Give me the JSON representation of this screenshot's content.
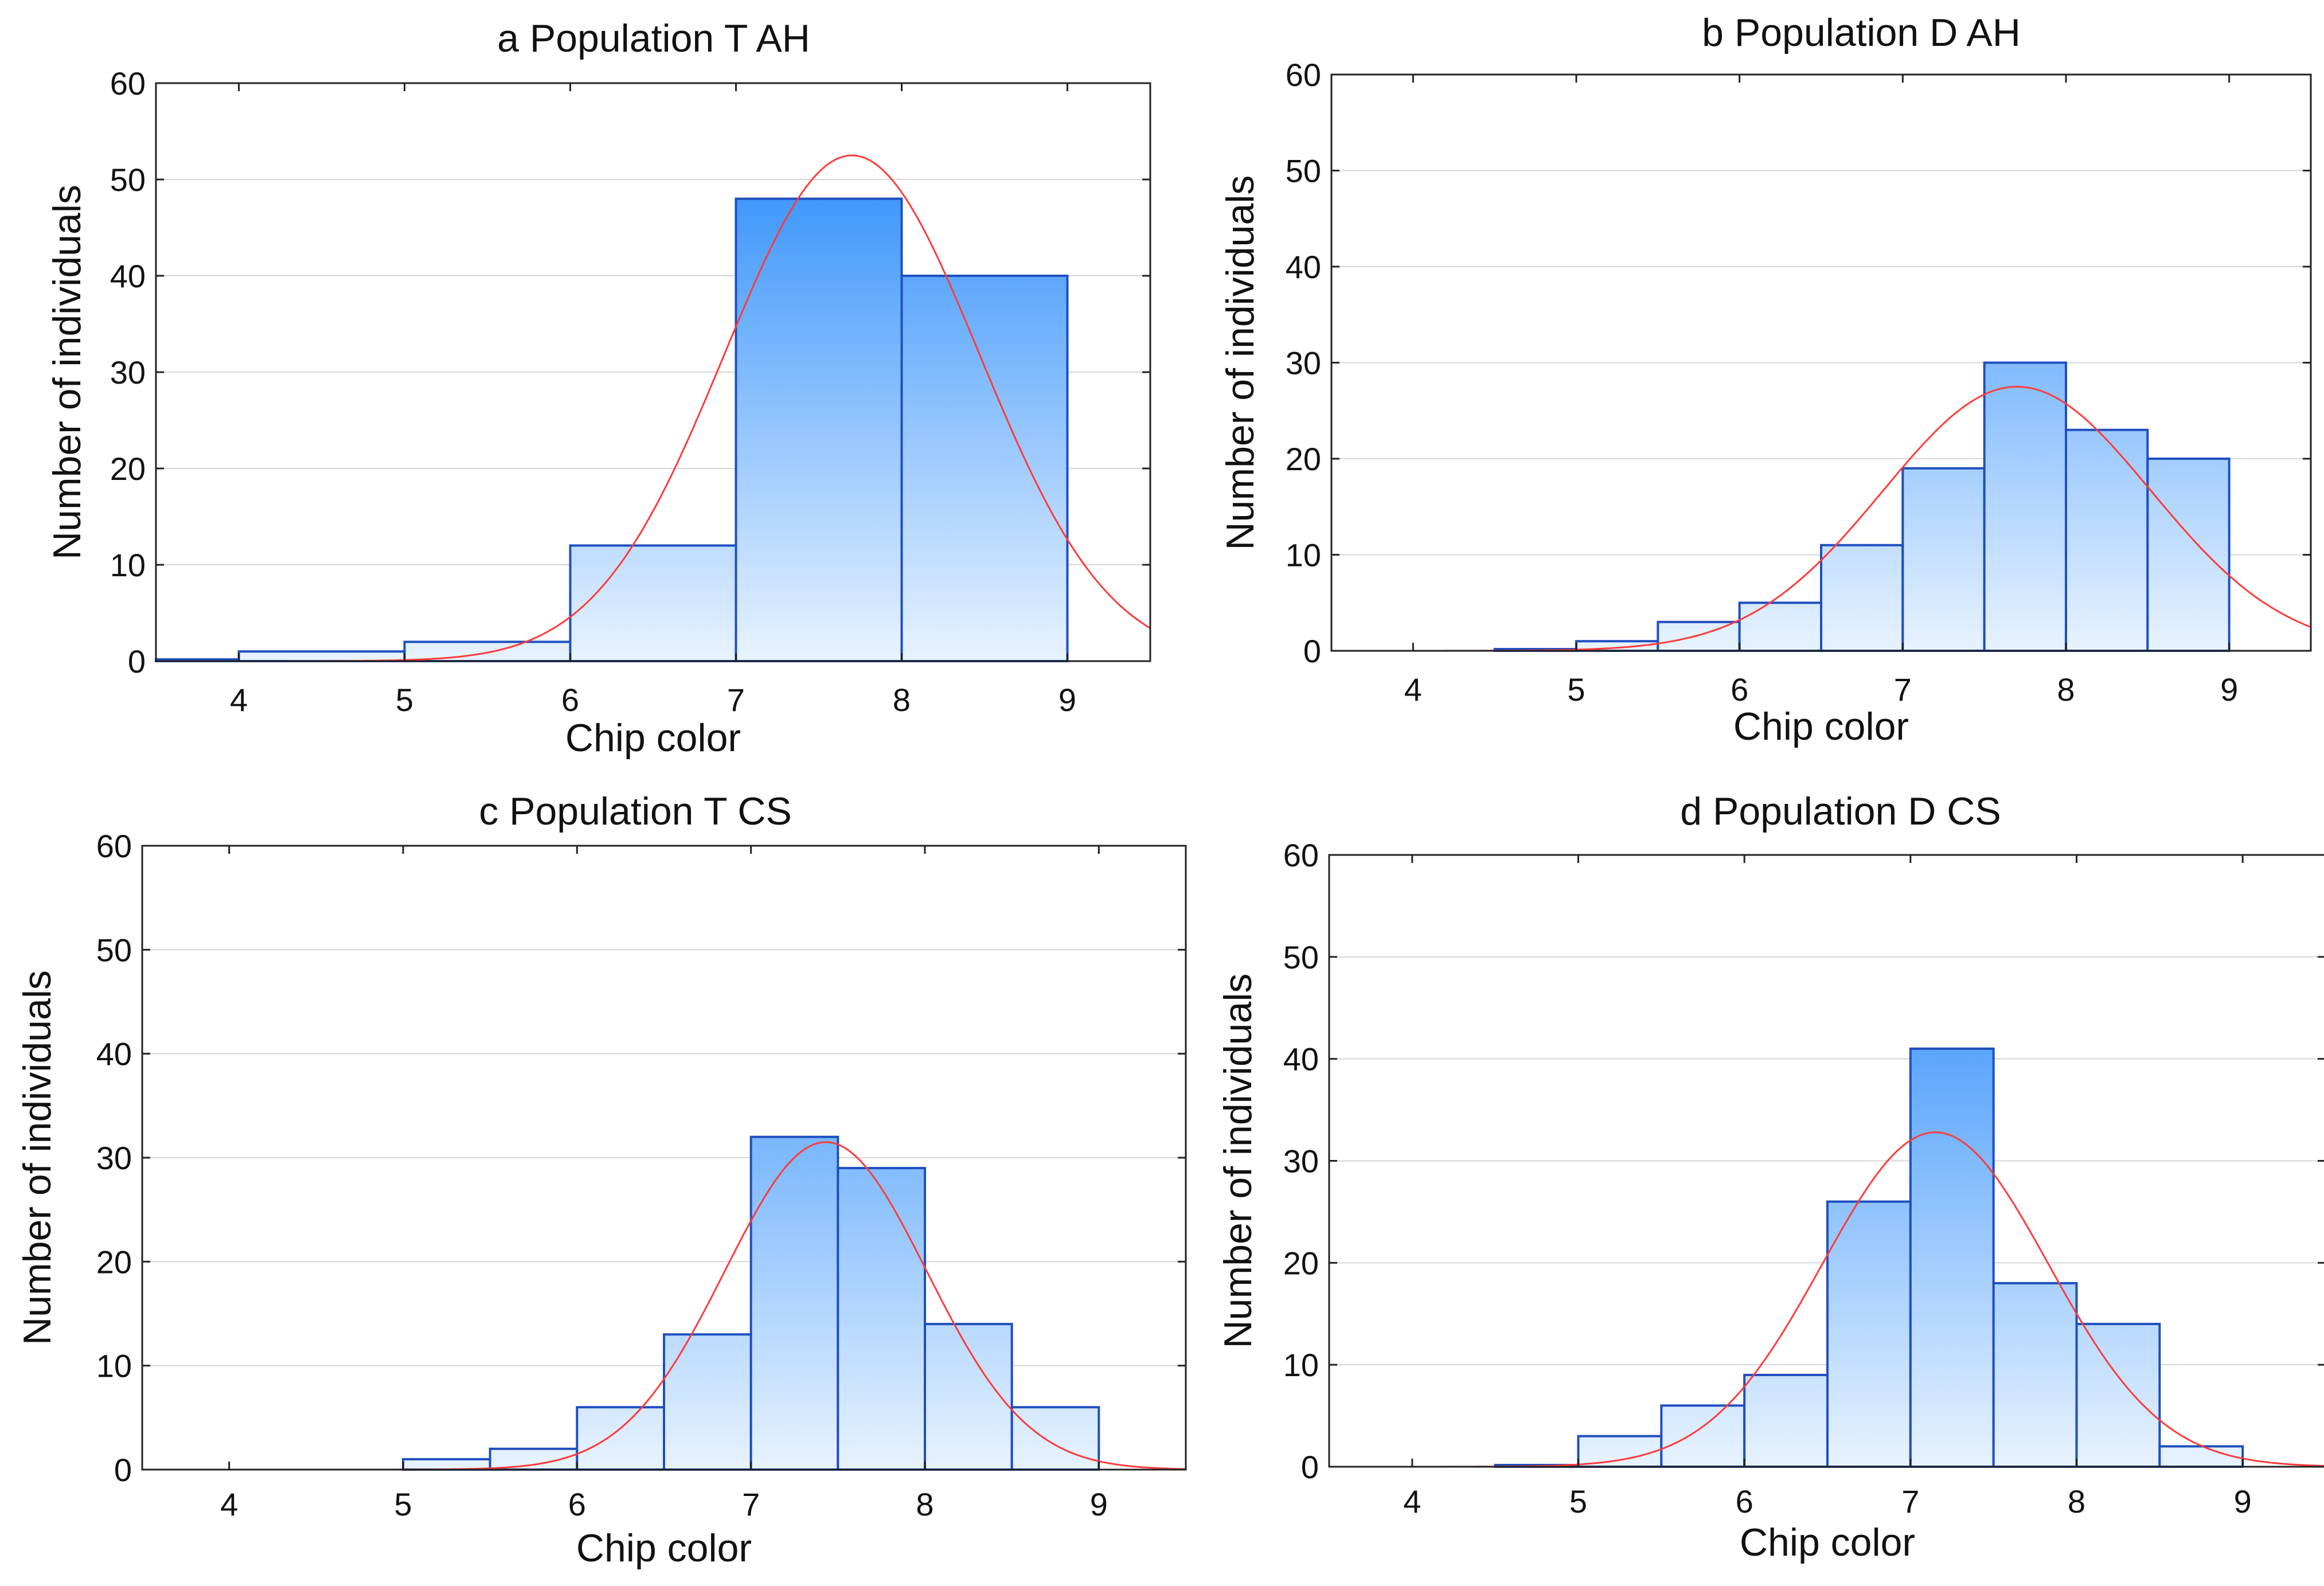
{
  "chart_data": [
    {
      "id": "a",
      "type": "bar",
      "title": "a Population T AH",
      "xlabel": "Chip color",
      "ylabel": "Number of individuals",
      "xlim": [
        3.5,
        9.5
      ],
      "ylim": [
        0,
        60
      ],
      "xticks": [
        4,
        5,
        6,
        7,
        8,
        9
      ],
      "yticks": [
        0,
        10,
        20,
        30,
        40,
        50,
        60
      ],
      "bin_width": 1,
      "bins": [
        {
          "start": 3.5,
          "value": 0
        },
        {
          "start": 4,
          "value": 1
        },
        {
          "start": 5,
          "value": 2
        },
        {
          "start": 6,
          "value": 12
        },
        {
          "start": 7,
          "value": 48
        },
        {
          "start": 8,
          "value": 40
        }
      ],
      "normal_fit": {
        "mean": 7.7,
        "sd": 0.77,
        "peak": 52.5
      },
      "bar_color": "#3d96fb",
      "bar_edge_color": "#1f4fbf",
      "curve_color": "#ff3b3b"
    },
    {
      "id": "b",
      "type": "bar",
      "title": "b Population D AH",
      "xlabel": "Chip color",
      "ylabel": "Number of individuals",
      "xlim": [
        3.5,
        9.5
      ],
      "ylim": [
        0,
        60
      ],
      "xticks": [
        4,
        5,
        6,
        7,
        8,
        9
      ],
      "yticks": [
        0,
        10,
        20,
        30,
        40,
        50,
        60
      ],
      "bin_width": 0.5,
      "bins": [
        {
          "start": 4.5,
          "value": 0
        },
        {
          "start": 5,
          "value": 1
        },
        {
          "start": 5.5,
          "value": 3
        },
        {
          "start": 6,
          "value": 5
        },
        {
          "start": 6.5,
          "value": 11
        },
        {
          "start": 7,
          "value": 19
        },
        {
          "start": 7.5,
          "value": 30
        },
        {
          "start": 8,
          "value": 23
        },
        {
          "start": 8.5,
          "value": 20
        }
      ],
      "normal_fit": {
        "mean": 7.7,
        "sd": 0.82,
        "peak": 27.5
      },
      "bar_color": "#3d96fb",
      "bar_edge_color": "#1f4fbf",
      "curve_color": "#ff3b3b"
    },
    {
      "id": "c",
      "type": "bar",
      "title": "c Population T CS",
      "xlabel": "Chip color",
      "ylabel": "Number of individuals",
      "xlim": [
        3.5,
        9.5
      ],
      "ylim": [
        0,
        60
      ],
      "xticks": [
        4,
        5,
        6,
        7,
        8,
        9
      ],
      "yticks": [
        0,
        10,
        20,
        30,
        40,
        50,
        60
      ],
      "bin_width": 0.5,
      "bins": [
        {
          "start": 5,
          "value": 1
        },
        {
          "start": 5.5,
          "value": 2
        },
        {
          "start": 6,
          "value": 6
        },
        {
          "start": 6.5,
          "value": 13
        },
        {
          "start": 7,
          "value": 32
        },
        {
          "start": 7.5,
          "value": 29
        },
        {
          "start": 8,
          "value": 14
        },
        {
          "start": 8.5,
          "value": 6
        }
      ],
      "normal_fit": {
        "mean": 7.43,
        "sd": 0.58,
        "peak": 31.5
      },
      "bar_color": "#3d96fb",
      "bar_edge_color": "#1f4fbf",
      "curve_color": "#ff3b3b"
    },
    {
      "id": "d",
      "type": "bar",
      "title": "d Population D CS",
      "xlabel": "Chip color",
      "ylabel": "Number of individuals",
      "xlim": [
        3.5,
        9.5
      ],
      "ylim": [
        0,
        60
      ],
      "xticks": [
        4,
        5,
        6,
        7,
        8,
        9
      ],
      "yticks": [
        0,
        10,
        20,
        30,
        40,
        50,
        60
      ],
      "bin_width": 0.5,
      "bins": [
        {
          "start": 4.5,
          "value": 0
        },
        {
          "start": 5,
          "value": 3
        },
        {
          "start": 5.5,
          "value": 6
        },
        {
          "start": 6,
          "value": 9
        },
        {
          "start": 6.5,
          "value": 26
        },
        {
          "start": 7,
          "value": 41
        },
        {
          "start": 7.5,
          "value": 18
        },
        {
          "start": 8,
          "value": 14
        },
        {
          "start": 8.5,
          "value": 2
        }
      ],
      "normal_fit": {
        "mean": 7.15,
        "sd": 0.68,
        "peak": 32.8
      },
      "bar_color": "#3d96fb",
      "bar_edge_color": "#1f4fbf",
      "curve_color": "#ff3b3b"
    }
  ]
}
